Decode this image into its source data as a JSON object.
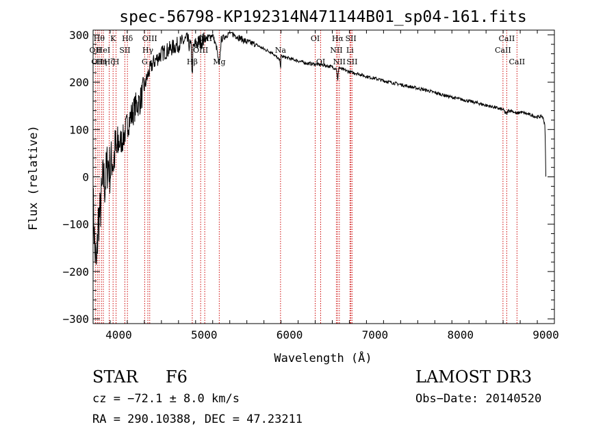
{
  "chart_data": {
    "type": "line",
    "title": "spec-56798-KP192314N471144B01_sp04-161.fits",
    "xlabel": "Wavelength (Å)",
    "ylabel": "Flux (relative)",
    "xlim": [
      3700,
      9100
    ],
    "ylim": [
      -310,
      310
    ],
    "xticks": [
      4000,
      5000,
      6000,
      7000,
      8000,
      9000
    ],
    "yticks": [
      -300,
      -200,
      -100,
      0,
      100,
      200,
      300
    ],
    "series": [
      {
        "name": "flux",
        "x": [
          3700,
          3720,
          3740,
          3760,
          3780,
          3800,
          3820,
          3840,
          3860,
          3880,
          3900,
          3920,
          3940,
          3960,
          3980,
          4000,
          4050,
          4100,
          4150,
          4200,
          4250,
          4300,
          4350,
          4400,
          4450,
          4500,
          4600,
          4700,
          4800,
          4850,
          4860,
          4870,
          4900,
          5000,
          5100,
          5150,
          5175,
          5200,
          5300,
          5400,
          5500,
          5600,
          5700,
          5800,
          5890,
          5895,
          5900,
          6000,
          6100,
          6200,
          6300,
          6400,
          6500,
          6550,
          6563,
          6575,
          6600,
          6700,
          6800,
          6900,
          7000,
          7100,
          7200,
          7300,
          7400,
          7500,
          7600,
          7700,
          7800,
          7900,
          8000,
          8100,
          8200,
          8300,
          8400,
          8450,
          8500,
          8542,
          8560,
          8600,
          8662,
          8700,
          8800,
          8900,
          8960,
          8990,
          9000
        ],
        "y": [
          -50,
          -150,
          -200,
          -90,
          -80,
          -40,
          0,
          -20,
          20,
          30,
          10,
          40,
          30,
          60,
          50,
          70,
          80,
          110,
          130,
          150,
          160,
          190,
          220,
          240,
          250,
          260,
          270,
          280,
          290,
          270,
          210,
          270,
          280,
          290,
          300,
          270,
          230,
          290,
          305,
          295,
          285,
          280,
          270,
          262,
          245,
          225,
          255,
          250,
          245,
          240,
          238,
          236,
          232,
          228,
          200,
          232,
          228,
          222,
          218,
          212,
          208,
          203,
          199,
          195,
          191,
          187,
          183,
          178,
          173,
          168,
          164,
          160,
          156,
          151,
          147,
          144,
          142,
          132,
          140,
          140,
          133,
          137,
          132,
          126,
          128,
          110,
          0
        ]
      }
    ],
    "lines": [
      {
        "wave": 3727,
        "label": "OII",
        "row": 2
      },
      {
        "wave": 3750,
        "label": "OII",
        "row": 3
      },
      {
        "wave": 3771,
        "label": "Hθ",
        "row": 1
      },
      {
        "wave": 3798,
        "label": "Hη",
        "row": 3
      },
      {
        "wave": 3820,
        "label": "HeI",
        "row": 2
      },
      {
        "wave": 3889,
        "label": "Hζ",
        "row": 3
      },
      {
        "wave": 3934,
        "label": "K",
        "row": 1
      },
      {
        "wave": 3969,
        "label": "H",
        "row": 3
      },
      {
        "wave": 4072,
        "label": "SII",
        "row": 2
      },
      {
        "wave": 4102,
        "label": "Hδ",
        "row": 1
      },
      {
        "wave": 4304,
        "label": "G",
        "row": 3
      },
      {
        "wave": 4341,
        "label": "Hγ",
        "row": 2
      },
      {
        "wave": 4363,
        "label": "OIII",
        "row": 1
      },
      {
        "wave": 4861,
        "label": "Hβ",
        "row": 3
      },
      {
        "wave": 4959,
        "label": "OIII",
        "row": 2
      },
      {
        "wave": 5007,
        "label": "OIII",
        "row": 1
      },
      {
        "wave": 5177,
        "label": "Mg",
        "row": 3
      },
      {
        "wave": 5894,
        "label": "Na",
        "row": 2
      },
      {
        "wave": 6300,
        "label": "OI",
        "row": 1
      },
      {
        "wave": 6364,
        "label": "OI",
        "row": 3
      },
      {
        "wave": 6548,
        "label": "NII",
        "row": 2
      },
      {
        "wave": 6563,
        "label": "Hα",
        "row": 1
      },
      {
        "wave": 6583,
        "label": "NII",
        "row": 3
      },
      {
        "wave": 6707,
        "label": "Li",
        "row": 2
      },
      {
        "wave": 6717,
        "label": "SII",
        "row": 1
      },
      {
        "wave": 6731,
        "label": "SII",
        "row": 3
      },
      {
        "wave": 8498,
        "label": "CaII",
        "row": 2
      },
      {
        "wave": 8542,
        "label": "CaII",
        "row": 1
      },
      {
        "wave": 8662,
        "label": "CaII",
        "row": 3
      }
    ]
  },
  "info": {
    "star_class": "STAR",
    "subclass": "F6",
    "survey": "LAMOST DR3",
    "cz": "cz = −72.1 ± 8.0 km/s",
    "obs_date": "Obs−Date: 20140520",
    "radec": "RA = 290.10388, DEC =  47.23211"
  }
}
